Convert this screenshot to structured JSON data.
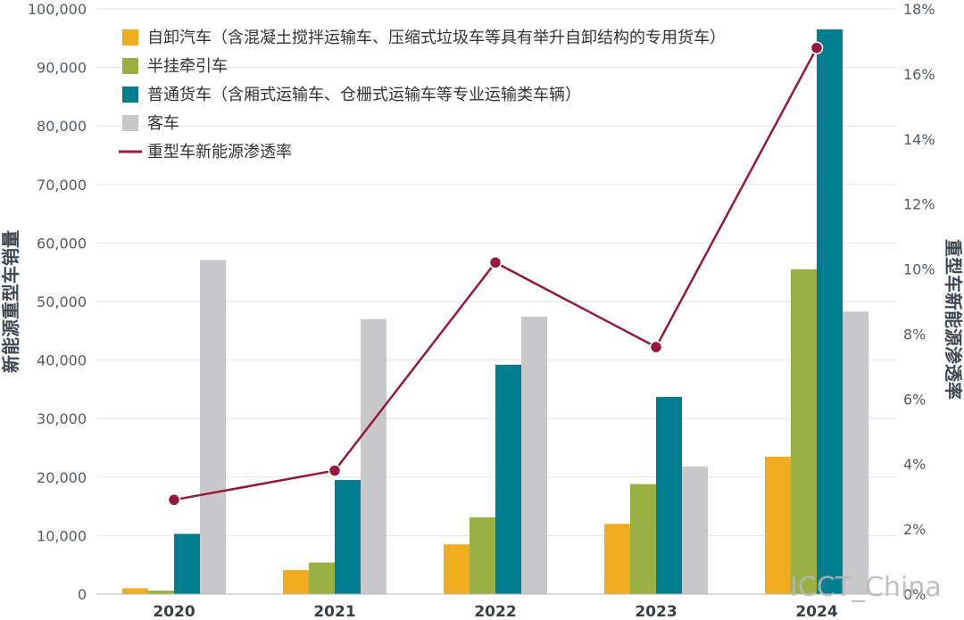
{
  "chart_data": {
    "type": "bar",
    "categories": [
      "2020",
      "2021",
      "2022",
      "2023",
      "2024"
    ],
    "series": [
      {
        "name": "自卸汽车（含混凝土搅拌运输车、压缩式垃圾车等具有举升自卸结构的专用货车）",
        "color": "#f2ac1f",
        "values": [
          1000,
          4100,
          8500,
          12000,
          23500
        ]
      },
      {
        "name": "半挂牵引车",
        "color": "#9bb042",
        "values": [
          600,
          5400,
          13100,
          18800,
          55500
        ]
      },
      {
        "name": "普通货车（含厢式运输车、仓栅式运输车等专业运输类车辆）",
        "color": "#007e8f",
        "values": [
          10300,
          19500,
          39200,
          33700,
          96500
        ]
      },
      {
        "name": "客车",
        "color": "#c8c8ca",
        "values": [
          57100,
          47000,
          47400,
          21800,
          48300
        ]
      }
    ],
    "line_series": {
      "name": "重型车新能源渗透率",
      "color": "#96183c",
      "values": [
        2.9,
        3.8,
        10.2,
        7.6,
        16.8
      ],
      "axis": "right"
    },
    "ylabel": "新能源重型车销量",
    "y2label": "重型车新能源渗透率",
    "ylim": [
      0,
      100000
    ],
    "y_ticks": [
      "0",
      "10,000",
      "20,000",
      "30,000",
      "40,000",
      "50,000",
      "60,000",
      "70,000",
      "80,000",
      "90,000",
      "100,000"
    ],
    "y2lim": [
      0,
      18
    ],
    "y2_ticks": [
      "0%",
      "2%",
      "4%",
      "6%",
      "8%",
      "10%",
      "12%",
      "14%",
      "16%",
      "18%"
    ],
    "grid": true,
    "legend_position": "top-left"
  },
  "watermark": "ICCT_China"
}
